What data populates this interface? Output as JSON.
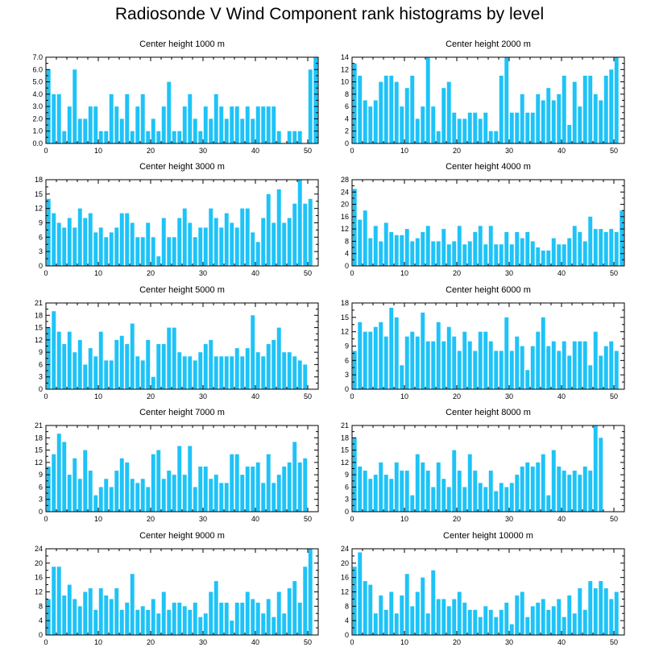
{
  "title": "Radiosonde V Wind Component rank histograms by level",
  "colors": {
    "bar": "#1ec3f7",
    "axis": "#000000",
    "background": "#ffffff"
  },
  "chart_data": [
    {
      "type": "bar",
      "title": "Center height 1000 m",
      "xlim": [
        0,
        52
      ],
      "ylim": [
        0,
        7
      ],
      "yticks": [
        0,
        1,
        2,
        3,
        4,
        5,
        6,
        7
      ],
      "ytick_labels": [
        "0.0",
        "1.0",
        "2.0",
        "3.0",
        "4.0",
        "5.0",
        "6.0",
        "7.0"
      ],
      "xticks": [
        0,
        10,
        20,
        30,
        40,
        50
      ],
      "values": [
        6,
        4,
        4,
        1,
        3,
        6,
        2,
        2,
        3,
        3,
        1,
        1,
        4,
        3,
        2,
        4,
        1,
        3,
        4,
        1,
        2,
        1,
        3,
        5,
        1,
        1,
        3,
        4,
        2,
        1,
        3,
        2,
        4,
        3,
        2,
        3,
        3,
        2,
        3,
        2,
        3,
        3,
        3,
        3,
        1,
        0,
        1,
        1,
        1,
        0,
        6,
        7
      ]
    },
    {
      "type": "bar",
      "title": "Center height 2000 m",
      "xlim": [
        0,
        52
      ],
      "ylim": [
        0,
        14
      ],
      "yticks": [
        0,
        2,
        4,
        6,
        8,
        10,
        12,
        14
      ],
      "ytick_labels": [
        "0",
        "2",
        "4",
        "6",
        "8",
        "10",
        "12",
        "14"
      ],
      "xticks": [
        0,
        10,
        20,
        30,
        40,
        50
      ],
      "values": [
        13,
        11,
        7,
        6,
        7,
        10,
        11,
        11,
        10,
        6,
        9,
        11,
        4,
        6,
        14,
        6,
        2,
        9,
        10,
        5,
        4,
        4,
        5,
        5,
        4,
        5,
        2,
        2,
        11,
        14,
        5,
        5,
        8,
        5,
        5,
        8,
        7,
        9,
        7,
        8,
        11,
        3,
        10,
        6,
        11,
        11,
        8,
        7,
        11,
        12,
        14,
        0
      ]
    },
    {
      "type": "bar",
      "title": "Center height 3000 m",
      "xlim": [
        0,
        52
      ],
      "ylim": [
        0,
        18
      ],
      "yticks": [
        0,
        3,
        6,
        9,
        12,
        15,
        18
      ],
      "ytick_labels": [
        "0",
        "3",
        "6",
        "9",
        "12",
        "15",
        "18"
      ],
      "xticks": [
        0,
        10,
        20,
        30,
        40,
        50
      ],
      "values": [
        14,
        11,
        9,
        8,
        10,
        8,
        12,
        10,
        11,
        7,
        8,
        6,
        7,
        8,
        11,
        11,
        9,
        6,
        6,
        9,
        6,
        2,
        10,
        6,
        6,
        10,
        12,
        9,
        6,
        8,
        8,
        12,
        10,
        8,
        11,
        9,
        8,
        12,
        12,
        7,
        5,
        10,
        15,
        9,
        16,
        9,
        10,
        13,
        18,
        13,
        14,
        0
      ]
    },
    {
      "type": "bar",
      "title": "Center height 4000 m",
      "xlim": [
        0,
        52
      ],
      "ylim": [
        0,
        28
      ],
      "yticks": [
        0,
        4,
        8,
        12,
        16,
        20,
        24,
        28
      ],
      "ytick_labels": [
        "0",
        "4",
        "8",
        "12",
        "16",
        "20",
        "24",
        "28"
      ],
      "xticks": [
        0,
        10,
        20,
        30,
        40,
        50
      ],
      "values": [
        25,
        15,
        18,
        9,
        13,
        8,
        14,
        11,
        10,
        10,
        12,
        8,
        9,
        11,
        13,
        8,
        8,
        12,
        7,
        8,
        13,
        7,
        8,
        11,
        13,
        7,
        13,
        7,
        7,
        11,
        7,
        11,
        9,
        11,
        8,
        6,
        5,
        5,
        9,
        7,
        7,
        9,
        13,
        11,
        8,
        16,
        12,
        12,
        11,
        12,
        11,
        18
      ]
    },
    {
      "type": "bar",
      "title": "Center height 5000 m",
      "xlim": [
        0,
        52
      ],
      "ylim": [
        0,
        21
      ],
      "yticks": [
        0,
        3,
        6,
        9,
        12,
        15,
        18,
        21
      ],
      "ytick_labels": [
        "0",
        "3",
        "6",
        "9",
        "12",
        "15",
        "18",
        "21"
      ],
      "xticks": [
        0,
        10,
        20,
        30,
        40,
        50
      ],
      "values": [
        15,
        19,
        14,
        11,
        14,
        9,
        12,
        6,
        10,
        8,
        14,
        7,
        7,
        12,
        13,
        11,
        16,
        8,
        7,
        12,
        3,
        11,
        11,
        15,
        15,
        9,
        8,
        8,
        7,
        9,
        11,
        12,
        8,
        8,
        8,
        8,
        10,
        8,
        10,
        18,
        9,
        8,
        11,
        12,
        15,
        9,
        9,
        8,
        7,
        6,
        0,
        0
      ]
    },
    {
      "type": "bar",
      "title": "Center height 6000 m",
      "xlim": [
        0,
        52
      ],
      "ylim": [
        0,
        18
      ],
      "yticks": [
        0,
        3,
        6,
        9,
        12,
        15,
        18
      ],
      "ytick_labels": [
        "0",
        "3",
        "6",
        "9",
        "12",
        "15",
        "18"
      ],
      "xticks": [
        0,
        10,
        20,
        30,
        40,
        50
      ],
      "values": [
        8,
        14,
        12,
        12,
        13,
        14,
        11,
        17,
        15,
        5,
        11,
        12,
        11,
        16,
        10,
        10,
        14,
        10,
        13,
        11,
        8,
        12,
        10,
        8,
        12,
        12,
        10,
        8,
        8,
        15,
        8,
        11,
        9,
        4,
        9,
        12,
        15,
        9,
        10,
        8,
        10,
        7,
        10,
        10,
        10,
        5,
        12,
        7,
        9,
        10,
        8,
        0
      ]
    },
    {
      "type": "bar",
      "title": "Center height 7000 m",
      "xlim": [
        0,
        52
      ],
      "ylim": [
        0,
        21
      ],
      "yticks": [
        0,
        3,
        6,
        9,
        12,
        15,
        18,
        21
      ],
      "ytick_labels": [
        "0",
        "3",
        "6",
        "9",
        "12",
        "15",
        "18",
        "21"
      ],
      "xticks": [
        0,
        10,
        20,
        30,
        40,
        50
      ],
      "values": [
        11,
        14,
        19,
        17,
        9,
        13,
        8,
        15,
        10,
        4,
        6,
        8,
        6,
        10,
        13,
        12,
        8,
        7,
        8,
        6,
        14,
        15,
        8,
        10,
        9,
        16,
        9,
        16,
        6,
        11,
        11,
        8,
        9,
        7,
        7,
        14,
        14,
        9,
        11,
        11,
        12,
        7,
        14,
        7,
        9,
        11,
        12,
        17,
        12,
        13,
        0,
        0
      ]
    },
    {
      "type": "bar",
      "title": "Center height 8000 m",
      "xlim": [
        0,
        52
      ],
      "ylim": [
        0,
        21
      ],
      "yticks": [
        0,
        3,
        6,
        9,
        12,
        15,
        18,
        21
      ],
      "ytick_labels": [
        "0",
        "3",
        "6",
        "9",
        "12",
        "15",
        "18",
        "21"
      ],
      "xticks": [
        0,
        10,
        20,
        30,
        40,
        50
      ],
      "values": [
        18,
        11,
        10,
        8,
        9,
        12,
        9,
        8,
        12,
        10,
        10,
        4,
        14,
        12,
        10,
        6,
        12,
        8,
        6,
        15,
        10,
        6,
        14,
        10,
        7,
        6,
        10,
        5,
        7,
        6,
        7,
        9,
        11,
        12,
        11,
        12,
        14,
        4,
        15,
        11,
        10,
        9,
        10,
        9,
        11,
        10,
        21,
        18,
        0,
        0,
        0,
        0
      ]
    },
    {
      "type": "bar",
      "title": "Center height 9000 m",
      "xlim": [
        0,
        52
      ],
      "ylim": [
        0,
        24
      ],
      "yticks": [
        0,
        4,
        8,
        12,
        16,
        20,
        24
      ],
      "ytick_labels": [
        "0",
        "4",
        "8",
        "12",
        "16",
        "20",
        "24"
      ],
      "xticks": [
        0,
        10,
        20,
        30,
        40,
        50
      ],
      "values": [
        10,
        19,
        19,
        11,
        14,
        10,
        8,
        12,
        13,
        7,
        13,
        11,
        10,
        13,
        7,
        9,
        17,
        7,
        8,
        7,
        10,
        6,
        12,
        7,
        9,
        9,
        8,
        7,
        9,
        5,
        6,
        12,
        15,
        9,
        9,
        4,
        9,
        9,
        12,
        10,
        9,
        6,
        10,
        5,
        12,
        6,
        13,
        15,
        9,
        19,
        24,
        0
      ]
    },
    {
      "type": "bar",
      "title": "Center height 10000 m",
      "xlim": [
        0,
        52
      ],
      "ylim": [
        0,
        24
      ],
      "yticks": [
        0,
        4,
        8,
        12,
        16,
        20,
        24
      ],
      "ytick_labels": [
        "0",
        "4",
        "8",
        "12",
        "16",
        "20",
        "24"
      ],
      "xticks": [
        0,
        10,
        20,
        30,
        40,
        50
      ],
      "values": [
        19,
        23,
        15,
        14,
        6,
        11,
        7,
        12,
        6,
        11,
        17,
        8,
        12,
        16,
        6,
        18,
        10,
        10,
        8,
        10,
        12,
        9,
        7,
        7,
        5,
        8,
        7,
        5,
        7,
        9,
        3,
        11,
        12,
        5,
        8,
        9,
        10,
        7,
        8,
        10,
        5,
        11,
        6,
        13,
        7,
        15,
        13,
        15,
        13,
        10,
        12,
        0
      ]
    }
  ]
}
